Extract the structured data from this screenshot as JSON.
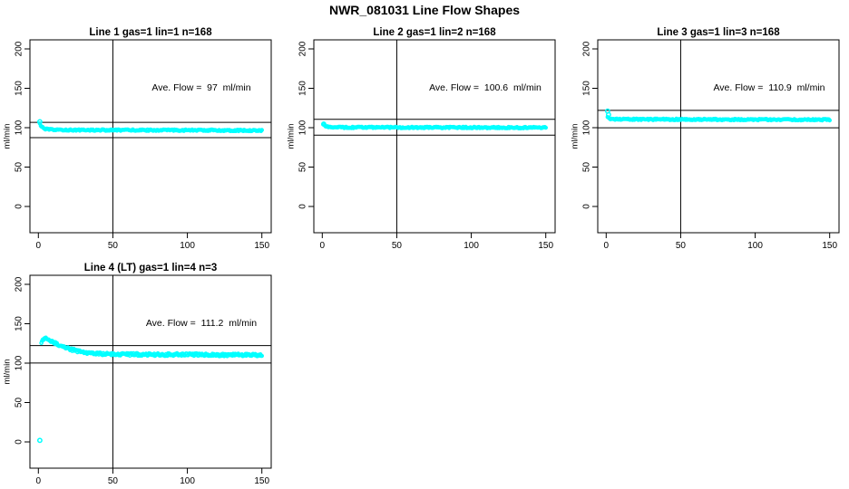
{
  "page": {
    "main_title": "NWR_081031  Line Flow Shapes"
  },
  "colors": {
    "points": "#00ffff",
    "axis": "#000000",
    "text": "#000000",
    "background": "#ffffff"
  },
  "chart_data": [
    {
      "type": "scatter",
      "title": "Line 1 gas=1 lin=1 n=168",
      "annotation": "Ave. Flow =  97  ml/min",
      "ave_flow": 97,
      "n": 168,
      "ylabel": "ml/min",
      "xlim": [
        0,
        150
      ],
      "ylim": [
        -30,
        212
      ],
      "x_ticks": [
        0,
        50,
        100,
        150
      ],
      "y_ticks": [
        0,
        50,
        100,
        150,
        200
      ],
      "vline_x": 50,
      "hlines": [
        106.7,
        87.3
      ],
      "band_profile": [
        [
          1,
          104.5
        ],
        [
          2,
          101.5
        ],
        [
          4,
          98.8
        ],
        [
          7,
          97.6
        ],
        [
          12,
          97.2
        ],
        [
          30,
          97
        ],
        [
          60,
          96.9
        ],
        [
          100,
          96.8
        ],
        [
          150,
          96.4
        ]
      ],
      "outliers": [
        [
          1,
          107.5
        ]
      ],
      "noise": 0.9,
      "n_points": 240,
      "grid": false,
      "legend": false
    },
    {
      "type": "scatter",
      "title": "Line 2 gas=1 lin=2 n=168",
      "annotation": "Ave. Flow =  100.6  ml/min",
      "ave_flow": 100.6,
      "n": 168,
      "ylabel": "ml/min",
      "xlim": [
        0,
        150
      ],
      "ylim": [
        -30,
        212
      ],
      "x_ticks": [
        0,
        50,
        100,
        150
      ],
      "y_ticks": [
        0,
        50,
        100,
        150,
        200
      ],
      "vline_x": 50,
      "hlines": [
        110.7,
        90.5
      ],
      "band_profile": [
        [
          1,
          103.5
        ],
        [
          2,
          102
        ],
        [
          4,
          100.9
        ],
        [
          8,
          100.5
        ],
        [
          20,
          100.4
        ],
        [
          60,
          100.3
        ],
        [
          100,
          100.2
        ],
        [
          150,
          100
        ]
      ],
      "outliers": [
        [
          1,
          104.5
        ]
      ],
      "noise": 0.9,
      "n_points": 240,
      "grid": false,
      "legend": false
    },
    {
      "type": "scatter",
      "title": "Line 3 gas=1 lin=3 n=168",
      "annotation": "Ave. Flow =  110.9  ml/min",
      "ave_flow": 110.9,
      "n": 168,
      "ylabel": "ml/min",
      "xlim": [
        0,
        150
      ],
      "ylim": [
        -30,
        212
      ],
      "x_ticks": [
        0,
        50,
        100,
        150
      ],
      "y_ticks": [
        0,
        50,
        100,
        150,
        200
      ],
      "vline_x": 50,
      "hlines": [
        122.0,
        99.8
      ],
      "band_profile": [
        [
          1,
          114
        ],
        [
          2,
          112
        ],
        [
          4,
          111
        ],
        [
          8,
          110.7
        ],
        [
          30,
          110.5
        ],
        [
          80,
          110.4
        ],
        [
          150,
          110.2
        ]
      ],
      "outliers": [
        [
          1,
          121
        ],
        [
          1.6,
          116.5
        ]
      ],
      "noise": 0.9,
      "n_points": 240,
      "grid": false,
      "legend": false
    },
    {
      "type": "scatter",
      "title": "Line 4 (LT) gas=1 lin=4 n=3",
      "annotation": "Ave. Flow =  111.2  ml/min",
      "ave_flow": 111.2,
      "n": 3,
      "ylabel": "ml/min",
      "xlim": [
        0,
        150
      ],
      "ylim": [
        -30,
        212
      ],
      "x_ticks": [
        0,
        50,
        100,
        150
      ],
      "y_ticks": [
        0,
        50,
        100,
        150,
        200
      ],
      "vline_x": 50,
      "hlines": [
        122.3,
        100.1
      ],
      "band_profile": [
        [
          2,
          126
        ],
        [
          3,
          129
        ],
        [
          4,
          131
        ],
        [
          6,
          130.5
        ],
        [
          8,
          128.5
        ],
        [
          11,
          126
        ],
        [
          14,
          123
        ],
        [
          18,
          120
        ],
        [
          22,
          117.5
        ],
        [
          27,
          115
        ],
        [
          33,
          113
        ],
        [
          40,
          112
        ],
        [
          50,
          111.3
        ],
        [
          65,
          111
        ],
        [
          80,
          110.8
        ],
        [
          95,
          111
        ],
        [
          110,
          110.6
        ],
        [
          125,
          110.4
        ],
        [
          140,
          110.6
        ],
        [
          150,
          109.9
        ]
      ],
      "outliers": [
        [
          1,
          2
        ]
      ],
      "noise": 1.7,
      "n_points": 300,
      "grid": false,
      "legend": false
    }
  ]
}
